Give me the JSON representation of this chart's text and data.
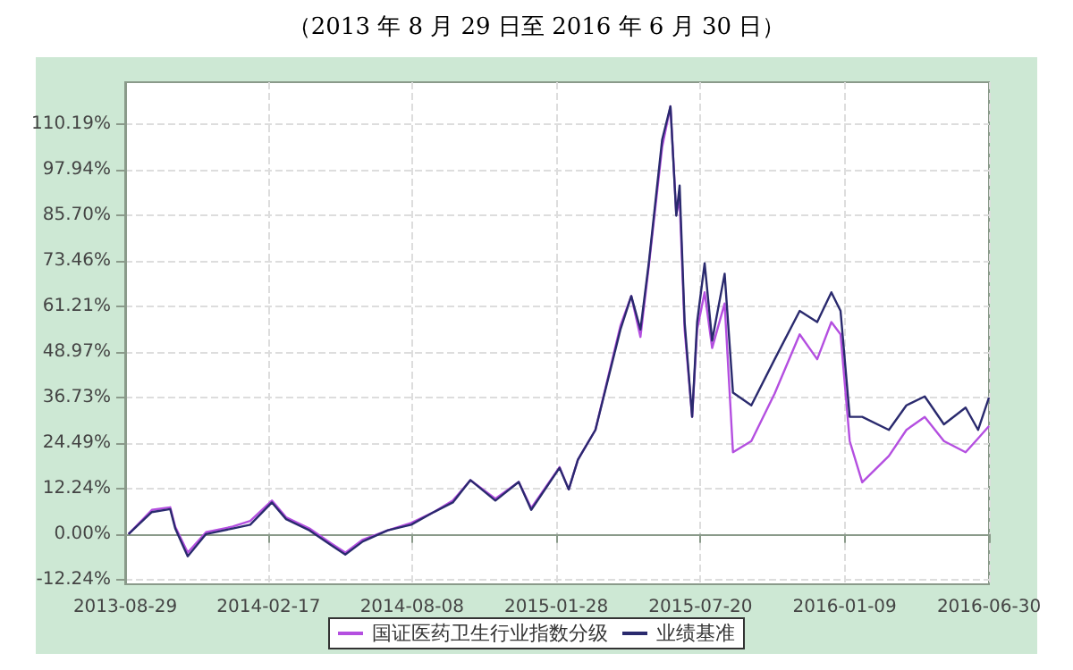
{
  "chart_data": {
    "type": "line",
    "title": "（2013 年 8 月 29 日至 2016 年 6 月 30 日）",
    "x": [
      "2013-09-02",
      "2013-09-30",
      "2013-10-22",
      "2013-10-28",
      "2013-11-12",
      "2013-12-04",
      "2014-01-05",
      "2014-01-26",
      "2014-02-21",
      "2014-03-10",
      "2014-04-07",
      "2014-05-03",
      "2014-05-20",
      "2014-06-10",
      "2014-07-10",
      "2014-08-07",
      "2014-09-04",
      "2014-09-26",
      "2014-10-17",
      "2014-11-16",
      "2014-12-14",
      "2014-12-29",
      "2015-02-01",
      "2015-02-12",
      "2015-02-23",
      "2015-03-16",
      "2015-04-15",
      "2015-04-28",
      "2015-05-09",
      "2015-05-19",
      "2015-06-04",
      "2015-06-14",
      "2015-06-21",
      "2015-06-25",
      "2015-07-01",
      "2015-07-10",
      "2015-07-16",
      "2015-07-25",
      "2015-08-03",
      "2015-08-18",
      "2015-08-28",
      "2015-09-19",
      "2015-10-17",
      "2015-11-16",
      "2015-12-07",
      "2015-12-24",
      "2016-01-04",
      "2016-01-15",
      "2016-01-30",
      "2016-03-02",
      "2016-03-23",
      "2016-04-14",
      "2016-05-07",
      "2016-06-02",
      "2016-06-17",
      "2016-06-30"
    ],
    "series": [
      {
        "name": "国证医药卫生行业指数分级",
        "color": "#b44fe0",
        "values": [
          0,
          6.5,
          7.2,
          2,
          -5,
          0.5,
          2,
          3.5,
          9,
          4.5,
          1.5,
          -2.5,
          -5,
          -1.5,
          1,
          3,
          6,
          9,
          14.5,
          9.5,
          14,
          7,
          18,
          12,
          20,
          28,
          56,
          64,
          53,
          72,
          104,
          115,
          86,
          90,
          55,
          31.5,
          55,
          65,
          50,
          62,
          22,
          25,
          37.8,
          53.7,
          47,
          57,
          53.7,
          25,
          13.9,
          21,
          28,
          31.5,
          25,
          22,
          25.7,
          29
        ]
      },
      {
        "name": "业绩基准",
        "color": "#2a2a6e",
        "values": [
          0,
          5.9,
          6.7,
          1.5,
          -6,
          0,
          1.5,
          2.5,
          8.5,
          4,
          1,
          -3,
          -5.5,
          -2,
          1,
          2.5,
          6,
          8.5,
          14.5,
          9,
          14,
          6.5,
          17.8,
          12,
          20,
          28,
          55,
          64,
          55,
          72.8,
          106,
          115,
          85.6,
          93.7,
          57,
          31.5,
          57,
          72.8,
          52,
          70,
          38,
          34.6,
          47,
          60,
          57,
          65,
          60,
          31.5,
          31.5,
          28,
          34.6,
          37,
          29.5,
          34,
          28,
          36.7
        ]
      }
    ],
    "xlim": [
      "2013-08-29",
      "2016-06-30"
    ],
    "xticks": [
      "2013-08-29",
      "2014-02-17",
      "2014-08-08",
      "2015-01-28",
      "2015-07-20",
      "2016-01-09",
      "2016-06-30"
    ],
    "ylim": [
      -13.5,
      121.5
    ],
    "yticks": [
      {
        "value": -12.24,
        "label": "-12.24%"
      },
      {
        "value": 0,
        "label": "0.00%"
      },
      {
        "value": 12.24,
        "label": "12.24%"
      },
      {
        "value": 24.49,
        "label": "24.49%"
      },
      {
        "value": 36.73,
        "label": "36.73%"
      },
      {
        "value": 48.97,
        "label": "48.97%"
      },
      {
        "value": 61.21,
        "label": "61.21%"
      },
      {
        "value": 73.46,
        "label": "73.46%"
      },
      {
        "value": 85.7,
        "label": "85.70%"
      },
      {
        "value": 97.94,
        "label": "97.94%"
      },
      {
        "value": 110.19,
        "label": "110.19%"
      }
    ],
    "grid": true,
    "legend": "bottom",
    "marker": "none",
    "line_style": "solid"
  }
}
